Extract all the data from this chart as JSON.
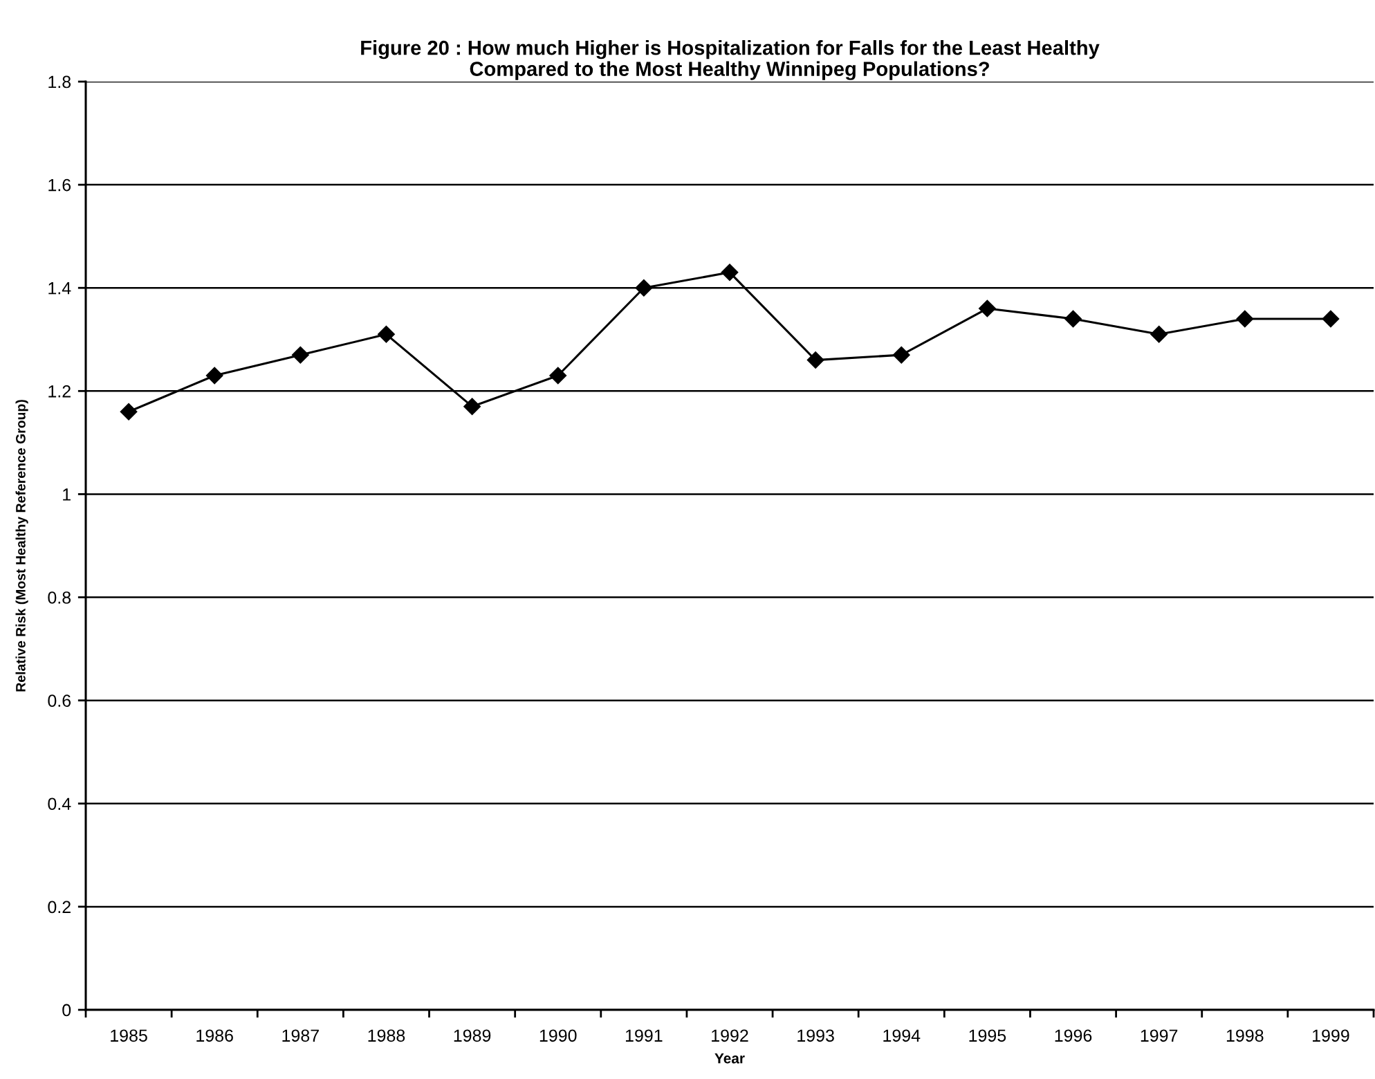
{
  "chart_data": {
    "type": "line",
    "title": "Figure 20 : How much Higher is Hospitalization for Falls for the Least Healthy\nCompared to the Most Healthy Winnipeg Populations?",
    "xlabel": "Year",
    "ylabel": "Relative Risk (Most Healthy Reference Group)",
    "categories": [
      "1985",
      "1986",
      "1987",
      "1988",
      "1989",
      "1990",
      "1991",
      "1992",
      "1993",
      "1994",
      "1995",
      "1996",
      "1997",
      "1998",
      "1999"
    ],
    "series": [
      {
        "color": "#000000",
        "values": [
          1.16,
          1.23,
          1.27,
          1.31,
          1.17,
          1.23,
          1.4,
          1.43,
          1.26,
          1.27,
          1.36,
          1.34,
          1.31,
          1.34,
          1.34
        ]
      }
    ],
    "ylim": [
      0,
      1.8
    ],
    "yticks": [
      0,
      0.2,
      0.4,
      0.6,
      0.8,
      1,
      1.2,
      1.4,
      1.6,
      1.8
    ],
    "grid": "y",
    "marker": "diamond",
    "line_style": "solid"
  }
}
